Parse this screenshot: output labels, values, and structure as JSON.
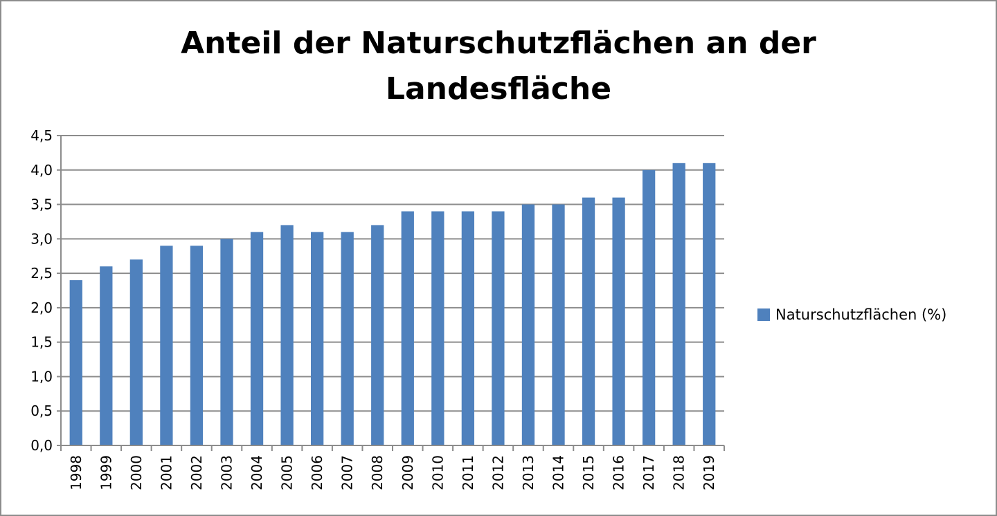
{
  "chart_data": {
    "type": "bar",
    "title_lines": [
      "Anteil der Naturschutzflächen an der",
      "Landesfläche"
    ],
    "categories": [
      "1998",
      "1999",
      "2000",
      "2001",
      "2002",
      "2003",
      "2004",
      "2005",
      "2006",
      "2007",
      "2008",
      "2009",
      "2010",
      "2011",
      "2012",
      "2013",
      "2014",
      "2015",
      "2016",
      "2017",
      "2018",
      "2019"
    ],
    "series": [
      {
        "name": "Naturschutzflächen (%)",
        "color": "#4f81bd",
        "values": [
          2.4,
          2.6,
          2.7,
          2.9,
          2.9,
          3.0,
          3.1,
          3.2,
          3.1,
          3.1,
          3.2,
          3.4,
          3.4,
          3.4,
          3.4,
          3.5,
          3.5,
          3.6,
          3.6,
          4.0,
          4.1,
          4.1
        ]
      }
    ],
    "xlabel": "",
    "ylabel": "",
    "ylim": [
      0,
      4.5
    ],
    "yticks": [
      "0,0",
      "0,5",
      "1,0",
      "1,5",
      "2,0",
      "2,5",
      "3,0",
      "3,5",
      "4,0",
      "4,5"
    ],
    "grid": true,
    "legend_position": "right"
  }
}
